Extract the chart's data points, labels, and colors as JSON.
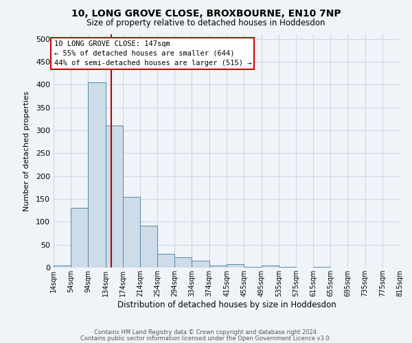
{
  "title": "10, LONG GROVE CLOSE, BROXBOURNE, EN10 7NP",
  "subtitle": "Size of property relative to detached houses in Hoddesdon",
  "xlabel": "Distribution of detached houses by size in Hoddesdon",
  "ylabel": "Number of detached properties",
  "bar_color": "#ccdce8",
  "bar_edge_color": "#5588aa",
  "background_color": "#f0f4f8",
  "grid_color": "#c8d8e8",
  "vline_x": 147,
  "vline_color": "#bb0000",
  "annotation_title": "10 LONG GROVE CLOSE: 147sqm",
  "annotation_line1": "← 55% of detached houses are smaller (644)",
  "annotation_line2": "44% of semi-detached houses are larger (515) →",
  "annotation_box_edge": "#cc0000",
  "bins": [
    14,
    54,
    94,
    134,
    174,
    214,
    254,
    294,
    334,
    374,
    415,
    455,
    495,
    535,
    575,
    615,
    655,
    695,
    735,
    775,
    815
  ],
  "bin_labels": [
    "14sqm",
    "54sqm",
    "94sqm",
    "134sqm",
    "174sqm",
    "214sqm",
    "254sqm",
    "294sqm",
    "334sqm",
    "374sqm",
    "415sqm",
    "455sqm",
    "495sqm",
    "535sqm",
    "575sqm",
    "615sqm",
    "655sqm",
    "695sqm",
    "735sqm",
    "775sqm",
    "815sqm"
  ],
  "values": [
    5,
    130,
    405,
    310,
    155,
    92,
    30,
    22,
    15,
    5,
    7,
    1,
    5,
    1,
    0,
    1,
    0,
    0,
    0,
    0
  ],
  "ylim": [
    0,
    510
  ],
  "yticks": [
    0,
    50,
    100,
    150,
    200,
    250,
    300,
    350,
    400,
    450,
    500
  ],
  "footer_line1": "Contains HM Land Registry data © Crown copyright and database right 2024.",
  "footer_line2": "Contains public sector information licensed under the Open Government Licence v3.0."
}
